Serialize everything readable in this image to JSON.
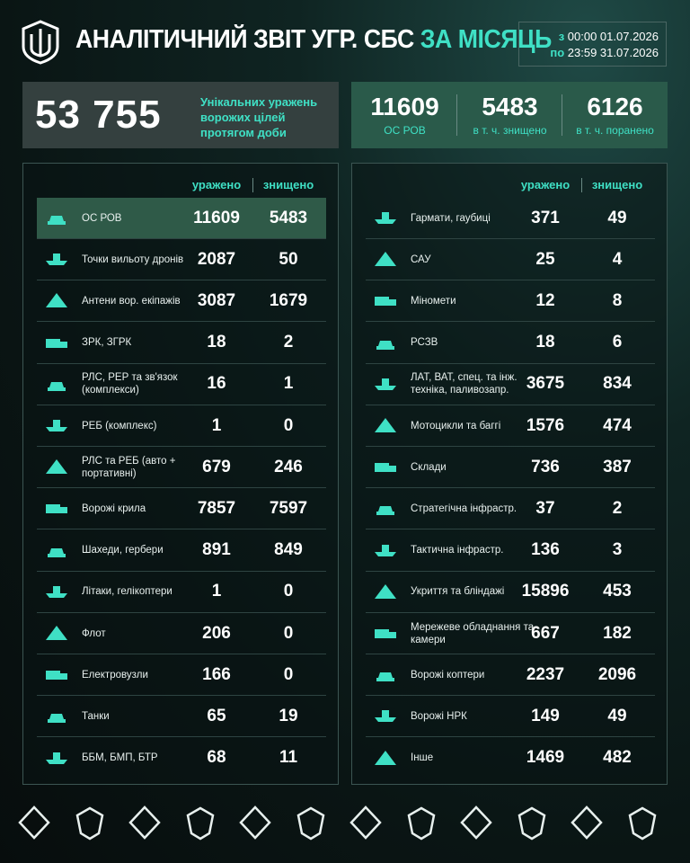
{
  "header": {
    "title": "АНАЛІТИЧНИЙ ЗВІТ УГР. СБС",
    "title_accent": "ЗА МІСЯЦЬ",
    "period": {
      "from_label": "з",
      "from": "00:00 01.07.2026",
      "to_label": "по",
      "to": "23:59 31.07.2026"
    }
  },
  "summary": {
    "total": "53 755",
    "total_label": "Унікальних уражень ворожих цілей протягом доби",
    "stats": [
      {
        "value": 11609,
        "label": "ОС РОВ"
      },
      {
        "value": 5483,
        "label": "в т. ч. знищено"
      },
      {
        "value": 6126,
        "label": "в т. ч. поранено"
      }
    ]
  },
  "tables": [
    {
      "columns": [
        "уражено",
        "знищено"
      ],
      "rows": [
        {
          "label": "ОС РОВ",
          "hit": 11609,
          "destroyed": 5483
        },
        {
          "label": "Точки вильоту дронів",
          "hit": 2087,
          "destroyed": 50
        },
        {
          "label": "Антени вор. екіпажів",
          "hit": 3087,
          "destroyed": 1679
        },
        {
          "label": "ЗРК, ЗГРК",
          "hit": 18,
          "destroyed": 2
        },
        {
          "label": "РЛС, РЕР та зв'язок (комплекси)",
          "hit": 16,
          "destroyed": 1
        },
        {
          "label": "РЕБ (комплекс)",
          "hit": 1,
          "destroyed": 0
        },
        {
          "label": "РЛС та РЕБ (авто + портативні)",
          "hit": 679,
          "destroyed": 246
        },
        {
          "label": "Ворожі крила",
          "hit": 7857,
          "destroyed": 7597
        },
        {
          "label": "Шахеди, гербери",
          "hit": 891,
          "destroyed": 849
        },
        {
          "label": "Літаки, гелікоптери",
          "hit": 1,
          "destroyed": 0
        },
        {
          "label": "Флот",
          "hit": 206,
          "destroyed": 0
        },
        {
          "label": "Електровузли",
          "hit": 166,
          "destroyed": 0
        },
        {
          "label": "Танки",
          "hit": 65,
          "destroyed": 19
        },
        {
          "label": "ББМ, БМП, БТР",
          "hit": 68,
          "destroyed": 11
        }
      ]
    },
    {
      "columns": [
        "уражено",
        "знищено"
      ],
      "rows": [
        {
          "label": "Гармати, гаубиці",
          "hit": 371,
          "destroyed": 49
        },
        {
          "label": "САУ",
          "hit": 25,
          "destroyed": 4
        },
        {
          "label": "Міномети",
          "hit": 12,
          "destroyed": 8
        },
        {
          "label": "РСЗВ",
          "hit": 18,
          "destroyed": 6
        },
        {
          "label": "ЛАТ, ВАТ, спец. та інж. техніка, паливозапр.",
          "hit": 3675,
          "destroyed": 834
        },
        {
          "label": "Мотоцикли та баггі",
          "hit": 1576,
          "destroyed": 474
        },
        {
          "label": "Склади",
          "hit": 736,
          "destroyed": 387
        },
        {
          "label": "Стратегічна інфрастр.",
          "hit": 37,
          "destroyed": 2
        },
        {
          "label": "Тактична інфрастр.",
          "hit": 136,
          "destroyed": 3
        },
        {
          "label": "Укриття та бліндажі",
          "hit": 15896,
          "destroyed": 453
        },
        {
          "label": "Мережеве обладнання та камери",
          "hit": 667,
          "destroyed": 182
        },
        {
          "label": "Ворожі коптери",
          "hit": 2237,
          "destroyed": 2096
        },
        {
          "label": "Ворожі НРК",
          "hit": 149,
          "destroyed": 49
        },
        {
          "label": "Інше",
          "hit": 1469,
          "destroyed": 482
        }
      ]
    }
  ]
}
